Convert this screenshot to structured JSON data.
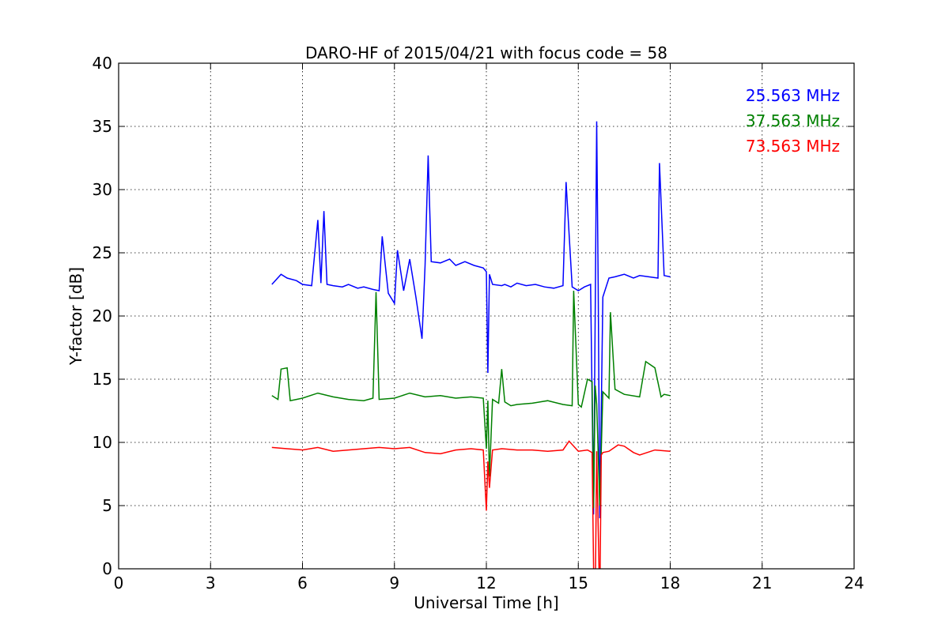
{
  "chart_data": {
    "type": "line",
    "title": "DARO-HF of 2015/04/21 with focus code = 58",
    "xlabel": "Universal Time [h]",
    "ylabel": "Y-factor [dB]",
    "xlim": [
      0,
      24
    ],
    "ylim": [
      0,
      40
    ],
    "xticks": [
      0,
      3,
      6,
      9,
      12,
      15,
      18,
      21,
      24
    ],
    "yticks": [
      0,
      5,
      10,
      15,
      20,
      25,
      30,
      35,
      40
    ],
    "grid": true,
    "legend_position": "top-right",
    "series": [
      {
        "name": "25.563 MHz",
        "color": "#0000ff",
        "x": [
          5.0,
          5.3,
          5.5,
          5.8,
          6.0,
          6.3,
          6.5,
          6.6,
          6.7,
          6.8,
          7.0,
          7.3,
          7.5,
          7.8,
          8.0,
          8.3,
          8.5,
          8.6,
          8.8,
          9.0,
          9.1,
          9.3,
          9.5,
          9.7,
          9.9,
          10.0,
          10.1,
          10.2,
          10.5,
          10.8,
          11.0,
          11.3,
          11.6,
          11.9,
          12.0,
          12.05,
          12.1,
          12.2,
          12.5,
          12.6,
          12.8,
          13.0,
          13.3,
          13.6,
          13.9,
          14.2,
          14.5,
          14.6,
          14.8,
          15.0,
          15.2,
          15.4,
          15.5,
          15.55,
          15.6,
          15.65,
          15.7,
          15.8,
          16.0,
          16.2,
          16.5,
          16.8,
          17.0,
          17.3,
          17.6,
          17.65,
          17.8,
          18.0
        ],
        "y": [
          22.5,
          23.3,
          23.0,
          22.8,
          22.5,
          22.4,
          27.6,
          22.6,
          28.3,
          22.5,
          22.4,
          22.3,
          22.5,
          22.2,
          22.3,
          22.1,
          22.0,
          26.3,
          21.8,
          21.0,
          25.2,
          22.0,
          24.5,
          21.5,
          18.2,
          24.0,
          32.7,
          24.3,
          24.2,
          24.5,
          24.0,
          24.3,
          24.0,
          23.8,
          23.5,
          15.5,
          23.3,
          22.5,
          22.4,
          22.5,
          22.3,
          22.6,
          22.4,
          22.5,
          22.3,
          22.2,
          22.4,
          30.6,
          22.3,
          22.0,
          22.3,
          22.5,
          4.3,
          20.0,
          35.4,
          22.5,
          4.0,
          21.5,
          23.0,
          23.1,
          23.3,
          23.0,
          23.2,
          23.1,
          23.0,
          32.1,
          23.2,
          23.1
        ]
      },
      {
        "name": "37.563 MHz",
        "color": "#008000",
        "x": [
          5.0,
          5.2,
          5.3,
          5.5,
          5.6,
          5.8,
          6.0,
          6.5,
          7.0,
          7.5,
          8.0,
          8.3,
          8.4,
          8.5,
          9.0,
          9.5,
          10.0,
          10.5,
          11.0,
          11.5,
          11.9,
          12.0,
          12.05,
          12.1,
          12.2,
          12.4,
          12.5,
          12.6,
          12.8,
          13.0,
          13.5,
          14.0,
          14.5,
          14.8,
          14.85,
          15.0,
          15.1,
          15.3,
          15.45,
          15.5,
          15.55,
          15.6,
          15.7,
          15.8,
          16.0,
          16.05,
          16.2,
          16.5,
          17.0,
          17.2,
          17.5,
          17.7,
          17.8,
          18.0
        ],
        "y": [
          13.7,
          13.4,
          15.8,
          15.9,
          13.3,
          13.4,
          13.5,
          13.9,
          13.6,
          13.4,
          13.3,
          13.5,
          21.9,
          13.4,
          13.5,
          13.9,
          13.6,
          13.7,
          13.5,
          13.6,
          13.5,
          9.5,
          13.3,
          7.3,
          13.4,
          13.1,
          15.8,
          13.2,
          12.9,
          13.0,
          13.1,
          13.3,
          13.0,
          12.9,
          22.0,
          13.0,
          12.8,
          15.0,
          14.8,
          4.8,
          14.5,
          13.0,
          5.0,
          14.0,
          13.5,
          20.3,
          14.2,
          13.8,
          13.6,
          16.4,
          15.9,
          13.6,
          13.8,
          13.7
        ]
      },
      {
        "name": "73.563 MHz",
        "color": "#ff0000",
        "x": [
          5.0,
          5.5,
          6.0,
          6.5,
          7.0,
          7.5,
          8.0,
          8.5,
          9.0,
          9.5,
          10.0,
          10.5,
          11.0,
          11.5,
          11.9,
          12.0,
          12.05,
          12.1,
          12.2,
          12.5,
          13.0,
          13.5,
          14.0,
          14.5,
          14.7,
          15.0,
          15.3,
          15.45,
          15.5,
          15.55,
          15.6,
          15.7,
          15.75,
          15.8,
          16.0,
          16.3,
          16.5,
          16.8,
          17.0,
          17.5,
          18.0
        ],
        "y": [
          9.6,
          9.5,
          9.4,
          9.6,
          9.3,
          9.4,
          9.5,
          9.6,
          9.5,
          9.6,
          9.2,
          9.1,
          9.4,
          9.5,
          9.4,
          4.6,
          8.5,
          6.4,
          9.4,
          9.5,
          9.4,
          9.4,
          9.3,
          9.4,
          10.1,
          9.3,
          9.4,
          9.2,
          0.0,
          -3.0,
          9.3,
          -3.0,
          9.0,
          9.2,
          9.3,
          9.8,
          9.7,
          9.2,
          9.0,
          9.4,
          9.3
        ]
      }
    ]
  }
}
